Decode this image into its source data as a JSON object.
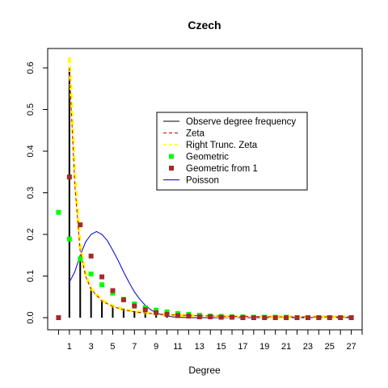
{
  "chart_data": {
    "type": "line",
    "title": "Czech",
    "xlabel": "Degree",
    "ylabel": "",
    "xlim": [
      -1,
      28
    ],
    "ylim": [
      0,
      0.63
    ],
    "x_ticks": [
      1,
      3,
      5,
      7,
      9,
      11,
      13,
      15,
      17,
      19,
      21,
      23,
      25,
      27
    ],
    "y_ticks": [
      0.0,
      0.1,
      0.2,
      0.3,
      0.4,
      0.5,
      0.6
    ],
    "y_tick_labels": [
      "0.0",
      "0.1",
      "0.2",
      "0.3",
      "0.4",
      "0.5",
      "0.6"
    ],
    "legend_position": "center-right",
    "series": [
      {
        "name": "Observe degree frequency",
        "kind": "histogram",
        "color": "#000000",
        "x": [
          1,
          2,
          3,
          4,
          5,
          6,
          7,
          8,
          9,
          10,
          11,
          12,
          13,
          14,
          15,
          16,
          17,
          18,
          19,
          20,
          21,
          22,
          23,
          24,
          25,
          26,
          27
        ],
        "y": [
          0.595,
          0.14,
          0.065,
          0.04,
          0.03,
          0.022,
          0.016,
          0.012,
          0.01,
          0.008,
          0.007,
          0.006,
          0.005,
          0.004,
          0.004,
          0.003,
          0.003,
          0.003,
          0.002,
          0.002,
          0.002,
          0.002,
          0.002,
          0.002,
          0.002,
          0.002,
          0.002
        ]
      },
      {
        "name": "Zeta",
        "kind": "dashed-line",
        "color": "#cc0000",
        "x": [
          1,
          1.5,
          2,
          2.5,
          3,
          4,
          5,
          6,
          7,
          8,
          9,
          10,
          12,
          14,
          16,
          18,
          20,
          22,
          24,
          26,
          27
        ],
        "y": [
          0.6,
          0.32,
          0.16,
          0.1,
          0.068,
          0.04,
          0.027,
          0.019,
          0.014,
          0.011,
          0.009,
          0.007,
          0.005,
          0.004,
          0.003,
          0.003,
          0.002,
          0.002,
          0.002,
          0.002,
          0.002
        ]
      },
      {
        "name": "Right Trunc. Zeta",
        "kind": "dashed-line",
        "color": "#ffff00",
        "x": [
          1,
          1.5,
          2,
          2.5,
          3,
          4,
          5,
          6,
          7,
          8,
          9,
          10,
          12,
          14,
          16,
          18,
          20,
          22,
          24,
          26,
          27
        ],
        "y": [
          0.625,
          0.35,
          0.17,
          0.105,
          0.07,
          0.042,
          0.028,
          0.02,
          0.015,
          0.012,
          0.009,
          0.007,
          0.005,
          0.004,
          0.003,
          0.003,
          0.002,
          0.002,
          0.002,
          0.002,
          0.002
        ]
      },
      {
        "name": "Geometric",
        "kind": "points",
        "color": "#00ff00",
        "x": [
          0,
          1,
          2,
          3,
          4,
          5,
          6,
          7,
          8,
          9,
          10,
          11,
          12,
          13,
          14,
          15,
          16,
          17,
          18,
          19,
          20,
          21,
          22,
          23,
          24,
          25,
          26,
          27
        ],
        "y": [
          0.253,
          0.189,
          0.141,
          0.105,
          0.079,
          0.059,
          0.044,
          0.033,
          0.024,
          0.018,
          0.014,
          0.01,
          0.008,
          0.006,
          0.004,
          0.003,
          0.002,
          0.002,
          0.001,
          0.001,
          0.001,
          0.001,
          0.0,
          0.0,
          0.0,
          0.0,
          0.0,
          0.0
        ]
      },
      {
        "name": "Geometric from 1",
        "kind": "points",
        "color": "#a52a2a",
        "x": [
          0,
          1,
          2,
          3,
          4,
          5,
          6,
          7,
          8,
          9,
          10,
          11,
          12,
          13,
          14,
          15,
          16,
          17,
          18,
          19,
          20,
          21,
          22,
          23,
          24,
          25,
          26,
          27
        ],
        "y": [
          0.0,
          0.338,
          0.223,
          0.148,
          0.098,
          0.065,
          0.043,
          0.028,
          0.019,
          0.012,
          0.008,
          0.005,
          0.004,
          0.002,
          0.002,
          0.001,
          0.001,
          0.0,
          0.0,
          0.0,
          0.0,
          0.0,
          0.0,
          0.0,
          0.0,
          0.0,
          0.0,
          0.0
        ]
      },
      {
        "name": "Poisson",
        "kind": "line",
        "color": "#0000cc",
        "x": [
          1,
          1.5,
          2,
          2.5,
          3,
          3.5,
          4,
          4.5,
          5,
          5.5,
          6,
          6.5,
          7,
          7.5,
          8,
          8.5,
          9,
          9.5,
          10,
          10.5,
          11,
          12,
          13,
          14,
          15,
          16,
          18,
          20,
          22,
          24,
          27
        ],
        "y": [
          0.085,
          0.11,
          0.15,
          0.182,
          0.2,
          0.207,
          0.2,
          0.185,
          0.162,
          0.137,
          0.11,
          0.085,
          0.062,
          0.044,
          0.03,
          0.019,
          0.012,
          0.007,
          0.004,
          0.002,
          0.001,
          0.0,
          0.0,
          0.0,
          0.0,
          0.0,
          0.0,
          0.0,
          0.0,
          0.0,
          0.0
        ]
      }
    ]
  }
}
